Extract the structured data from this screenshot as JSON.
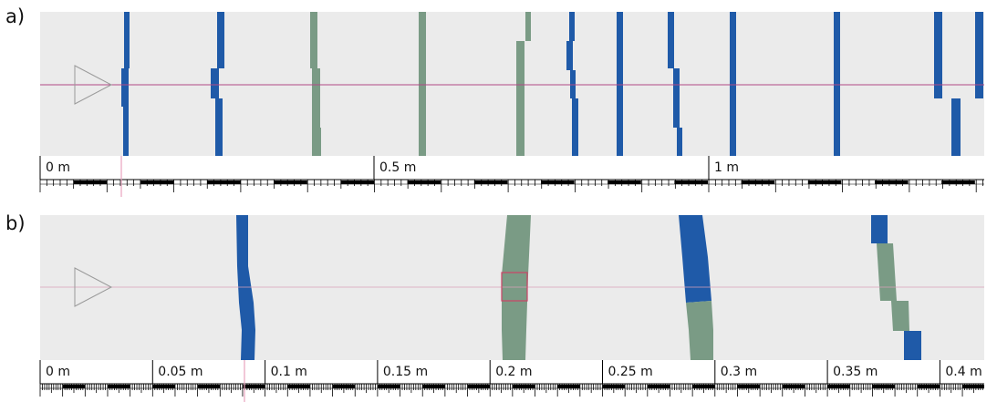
{
  "panels": [
    {
      "id": "a",
      "label": "a)",
      "scale_labels": [
        "0 m",
        "0.5 m",
        "1 m"
      ],
      "strips": [
        {
          "color": "blue",
          "segments": [
            [
              0,
              1,
              0,
              1
            ]
          ]
        },
        {
          "color": "blue",
          "segments": [
            [
              0,
              1,
              0,
              1
            ]
          ]
        },
        {
          "color": "green",
          "segments": [
            [
              0,
              0.37,
              0,
              0.37
            ],
            [
              0.37,
              0.75,
              0,
              0.75
            ],
            [
              0.75,
              1,
              0,
              1
            ]
          ]
        },
        {
          "color": "green",
          "segments": [
            [
              0,
              1,
              0,
              1
            ]
          ]
        },
        {
          "color": "green",
          "segments": [
            [
              0,
              0.2,
              0,
              0.2
            ],
            [
              0.2,
              1,
              0,
              1
            ]
          ]
        },
        {
          "color": "blue",
          "segments": [
            [
              0,
              0.45,
              0,
              0.45
            ],
            [
              0.45,
              1,
              0,
              1
            ]
          ]
        },
        {
          "color": "blue",
          "segments": [
            [
              0,
              1,
              0,
              1
            ]
          ]
        },
        {
          "color": "blue",
          "segments": [
            [
              0,
              1,
              0,
              1
            ]
          ]
        },
        {
          "color": "blue",
          "segments": [
            [
              0,
              1,
              0,
              1
            ]
          ]
        },
        {
          "color": "blue",
          "segments": [
            [
              0,
              0.62,
              0,
              0.62
            ],
            [
              0.62,
              1,
              0,
              1
            ]
          ]
        },
        {
          "color": "blue",
          "segments": [
            [
              0,
              0.6,
              0,
              0.6
            ],
            [
              0.6,
              1,
              0,
              1
            ]
          ]
        }
      ]
    },
    {
      "id": "b",
      "label": "b)",
      "scale_labels": [
        "0 m",
        "0.05 m",
        "0.1 m",
        "0.15 m",
        "0.2 m",
        "0.25 m",
        "0.3 m",
        "0.35 m",
        "0.4 m"
      ],
      "strips": [
        {
          "color": "blue"
        },
        {
          "color": "green"
        },
        {
          "color": "blue"
        },
        {
          "color": "green"
        },
        {
          "color": "blue"
        },
        {
          "color": "green"
        },
        {
          "color": "blue"
        }
      ]
    }
  ],
  "colors": {
    "background": "#ebebeb",
    "blue": "#1f5aa8",
    "green": "#7a9b85",
    "axis_line": "#b24a86",
    "marker": "#e9a4bf",
    "outline": "#9a9a9a",
    "highlight_box": "#cc4466",
    "ruler_dark": "#000000"
  },
  "icons": [
    "play-triangle-icon"
  ]
}
